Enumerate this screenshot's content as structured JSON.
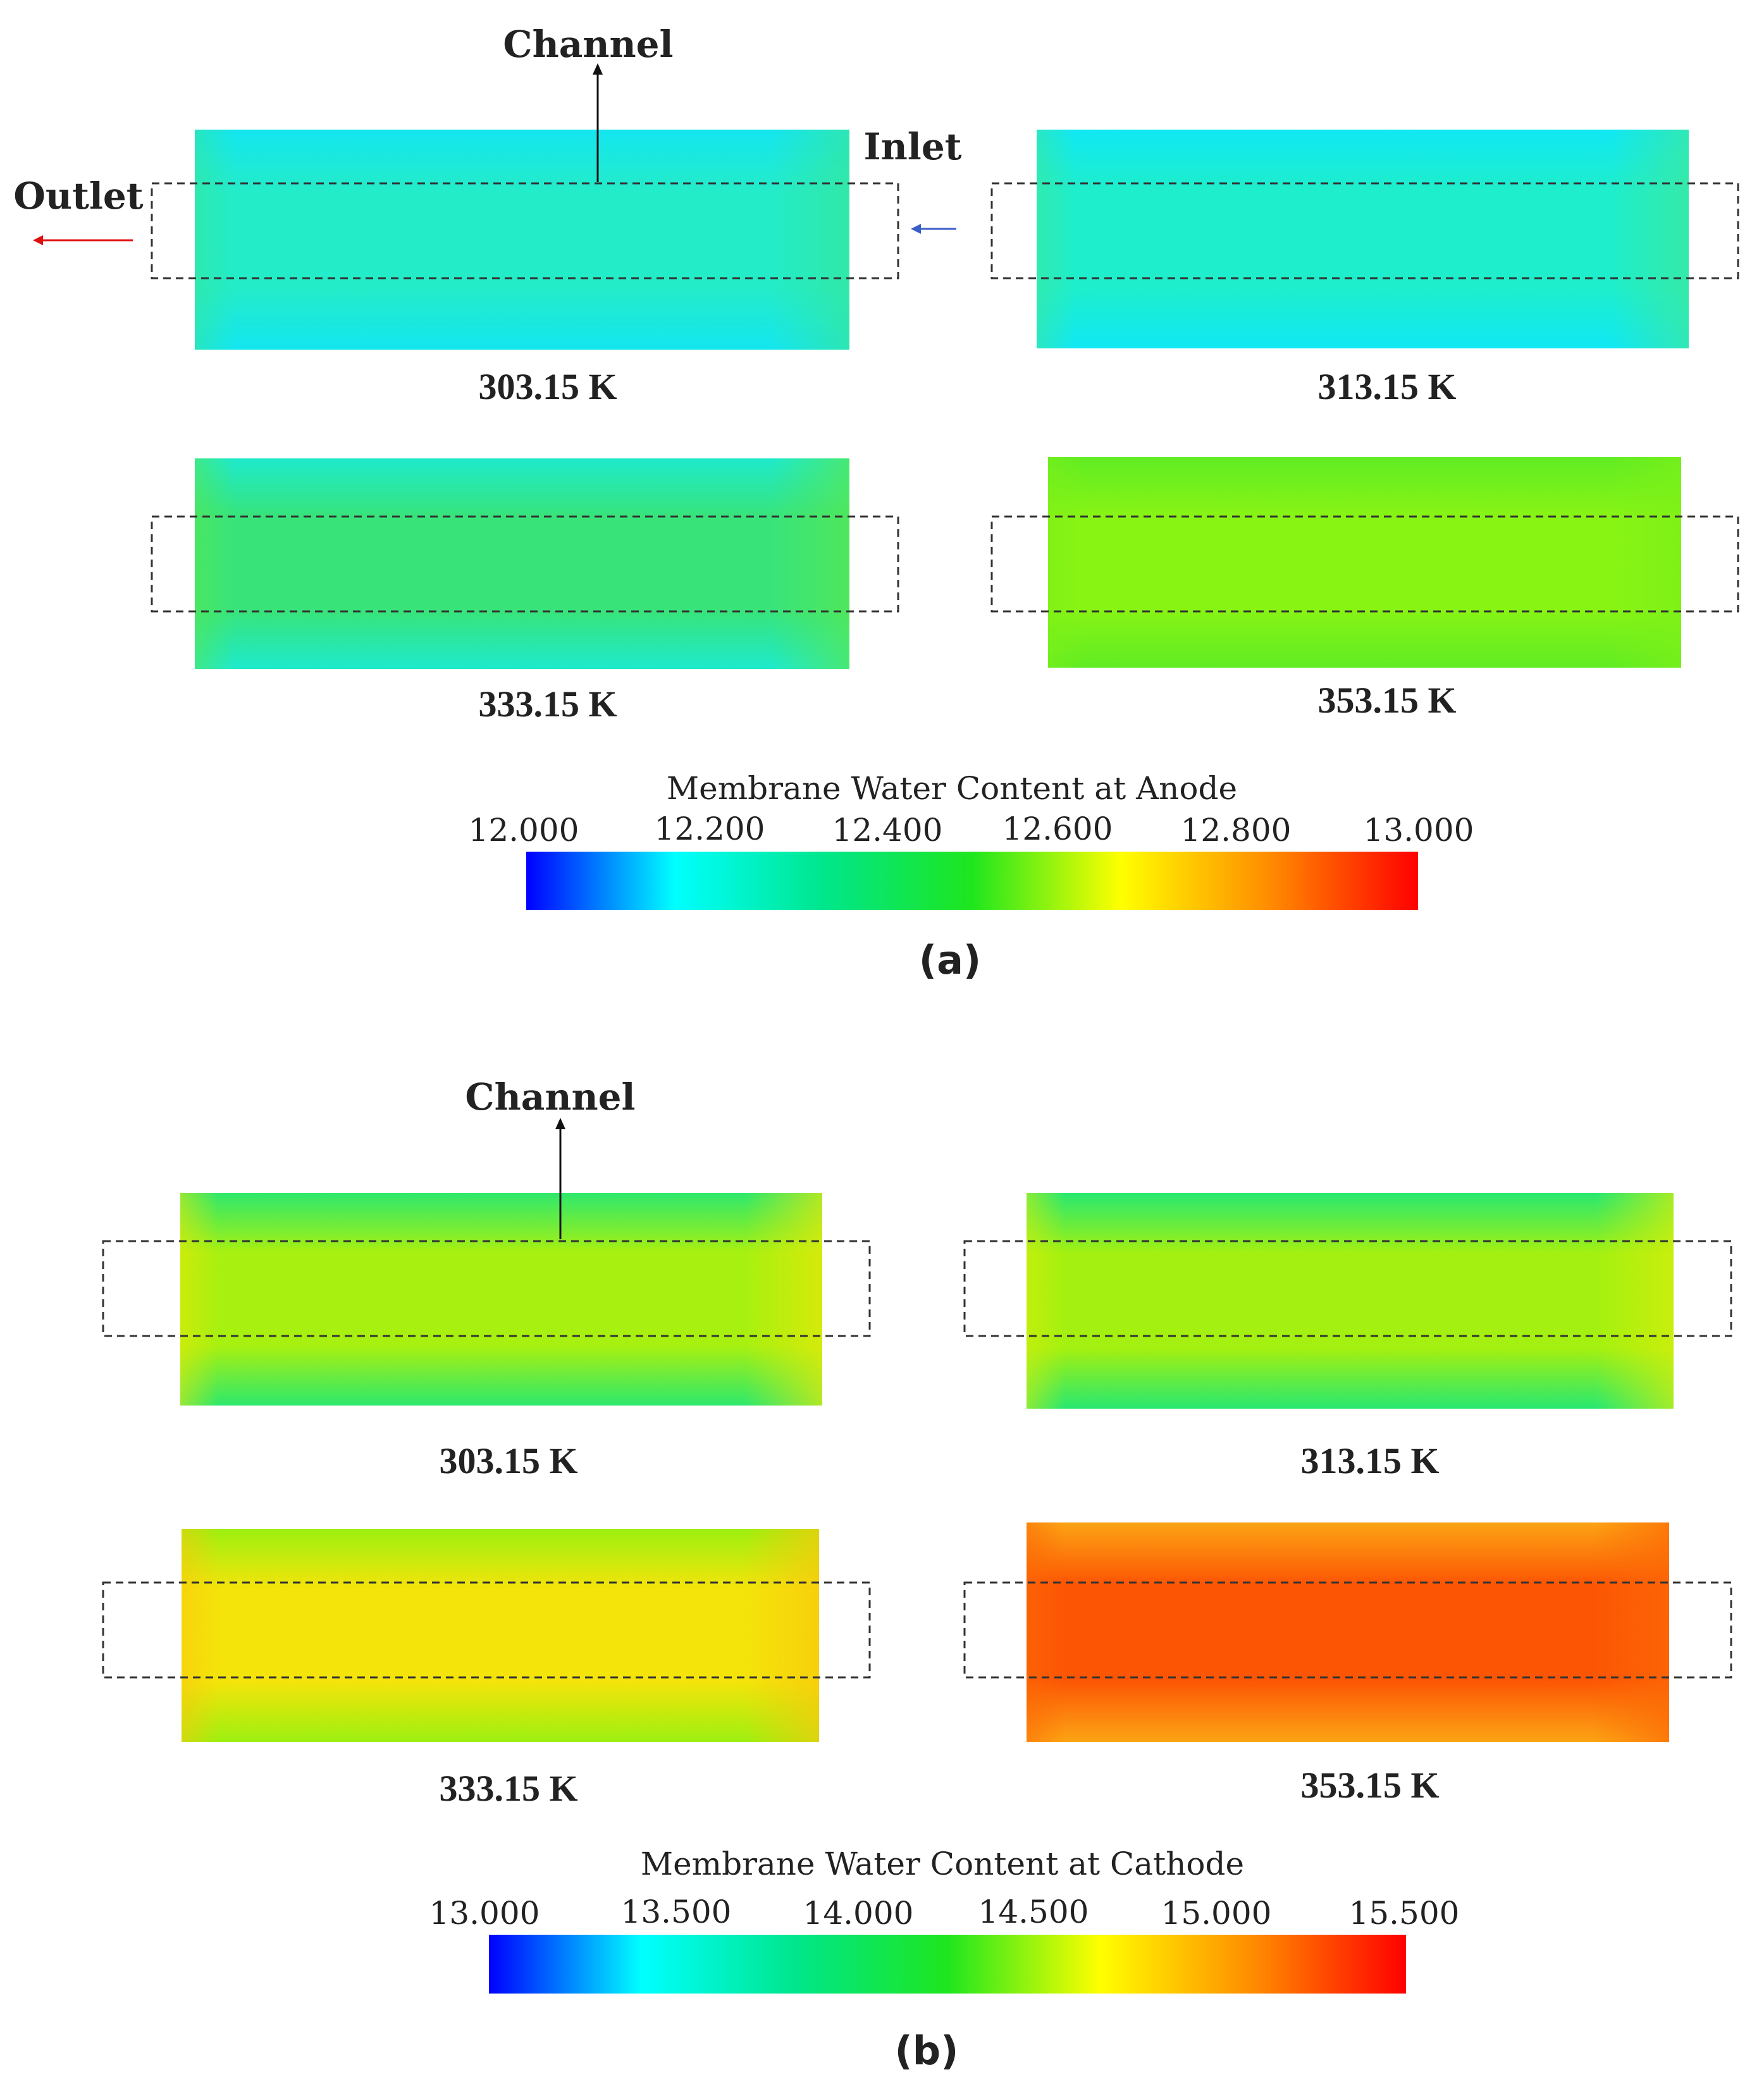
{
  "panel_a": {
    "label": "(a)",
    "annotations": {
      "channel": "Channel",
      "inlet": "Inlet",
      "outlet": "Outlet"
    },
    "colorbar": {
      "title": "Membrane Water Content at Anode",
      "ticks": [
        "12.000",
        "12.200",
        "12.400",
        "12.600",
        "12.800",
        "13.000"
      ],
      "range": [
        12.0,
        13.0
      ]
    },
    "plots": [
      {
        "temperature": "303.15 K",
        "core_color": "#23ecc8",
        "edge_color": "#14e6f0",
        "outlet_tint": "#36e69a"
      },
      {
        "temperature": "313.15 K",
        "core_color": "#1eeecb",
        "edge_color": "#10e8f4",
        "outlet_tint": "#3ee89a"
      },
      {
        "temperature": "333.15 K",
        "core_color": "#38e47a",
        "edge_color": "#1eeacc",
        "outlet_tint": "#58e850"
      },
      {
        "temperature": "353.15 K",
        "core_color": "#88f414",
        "edge_color": "#60ec24",
        "outlet_tint": "#7cf018"
      }
    ]
  },
  "panel_b": {
    "label": "(b)",
    "annotations": {
      "channel": "Channel"
    },
    "colorbar": {
      "title": "Membrane Water Content at Cathode",
      "ticks": [
        "13.000",
        "13.500",
        "14.000",
        "14.500",
        "15.000",
        "15.500"
      ],
      "range": [
        13.0,
        15.5
      ]
    },
    "plots": [
      {
        "temperature": "303.15 K",
        "core_color": "#a8f010",
        "edge_color": "#2ee86c",
        "outlet_tint": "#e8e808"
      },
      {
        "temperature": "313.15 K",
        "core_color": "#a4f010",
        "edge_color": "#28e870",
        "outlet_tint": "#d8ee0a"
      },
      {
        "temperature": "333.15 K",
        "core_color": "#f4e40a",
        "edge_color": "#9cf010",
        "outlet_tint": "#f8c80c"
      },
      {
        "temperature": "353.15 K",
        "core_color": "#fc5604",
        "edge_color": "#fca414",
        "outlet_tint": "#fc6a06"
      }
    ]
  },
  "colormap": [
    "#0000ff",
    "#00ffff",
    "#00e68c",
    "#1ee61e",
    "#ffff00",
    "#ff8c00",
    "#ff0000"
  ]
}
